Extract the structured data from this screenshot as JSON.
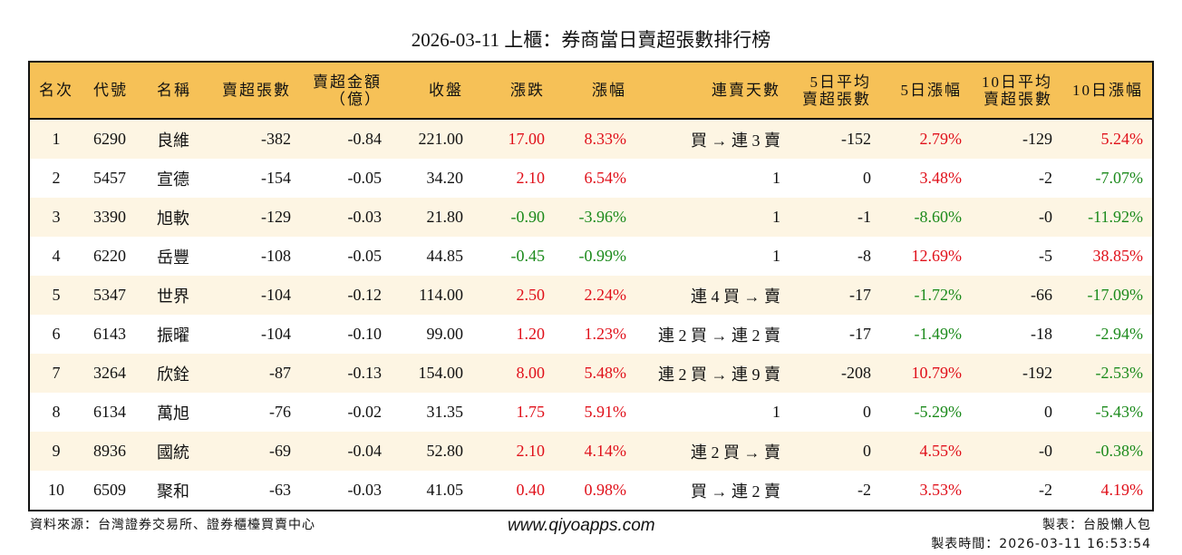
{
  "title": "2026-03-11 上櫃：券商當日賣超張數排行榜",
  "colors": {
    "header_bg": "#f6c157",
    "odd_row_bg": "#fdf5e3",
    "up": "#e0101a",
    "down": "#1b8a1b"
  },
  "headers": [
    "名次",
    "代號",
    "名稱",
    "賣超張數",
    "賣超金額\n（億）",
    "收盤",
    "漲跌",
    "漲幅",
    "連賣天數",
    "5日平均\n賣超張數",
    "5日漲幅",
    "10日平均\n賣超張數",
    "10日漲幅"
  ],
  "rows": [
    [
      "1",
      "6290",
      "良維",
      "-382",
      "-0.84",
      "221.00",
      "17.00",
      "8.33%",
      "買 → 連 3 賣",
      "-152",
      "2.79%",
      "-129",
      "5.24%"
    ],
    [
      "2",
      "5457",
      "宣德",
      "-154",
      "-0.05",
      "34.20",
      "2.10",
      "6.54%",
      "1",
      "0",
      "3.48%",
      "-2",
      "-7.07%"
    ],
    [
      "3",
      "3390",
      "旭軟",
      "-129",
      "-0.03",
      "21.80",
      "-0.90",
      "-3.96%",
      "1",
      "-1",
      "-8.60%",
      "-0",
      "-11.92%"
    ],
    [
      "4",
      "6220",
      "岳豐",
      "-108",
      "-0.05",
      "44.85",
      "-0.45",
      "-0.99%",
      "1",
      "-8",
      "12.69%",
      "-5",
      "38.85%"
    ],
    [
      "5",
      "5347",
      "世界",
      "-104",
      "-0.12",
      "114.00",
      "2.50",
      "2.24%",
      "連 4 買 → 賣",
      "-17",
      "-1.72%",
      "-66",
      "-17.09%"
    ],
    [
      "6",
      "6143",
      "振曜",
      "-104",
      "-0.10",
      "99.00",
      "1.20",
      "1.23%",
      "連 2 買 → 連 2 賣",
      "-17",
      "-1.49%",
      "-18",
      "-2.94%"
    ],
    [
      "7",
      "3264",
      "欣銓",
      "-87",
      "-0.13",
      "154.00",
      "8.00",
      "5.48%",
      "連 2 買 → 連 9 賣",
      "-208",
      "10.79%",
      "-192",
      "-2.53%"
    ],
    [
      "8",
      "6134",
      "萬旭",
      "-76",
      "-0.02",
      "31.35",
      "1.75",
      "5.91%",
      "1",
      "0",
      "-5.29%",
      "0",
      "-5.43%"
    ],
    [
      "9",
      "8936",
      "國統",
      "-69",
      "-0.04",
      "52.80",
      "2.10",
      "4.14%",
      "連 2 買 → 賣",
      "0",
      "4.55%",
      "-0",
      "-0.38%"
    ],
    [
      "10",
      "6509",
      "聚和",
      "-63",
      "-0.03",
      "41.05",
      "0.40",
      "0.98%",
      "買 → 連 2 賣",
      "-2",
      "3.53%",
      "-2",
      "4.19%"
    ]
  ],
  "footer": {
    "source": "資料來源：台灣證券交易所、證券櫃檯買賣中心",
    "website": "www.qiyoapps.com",
    "maker": "製表：台股懶人包",
    "time": "製表時間：2026-03-11 16:53:54"
  }
}
